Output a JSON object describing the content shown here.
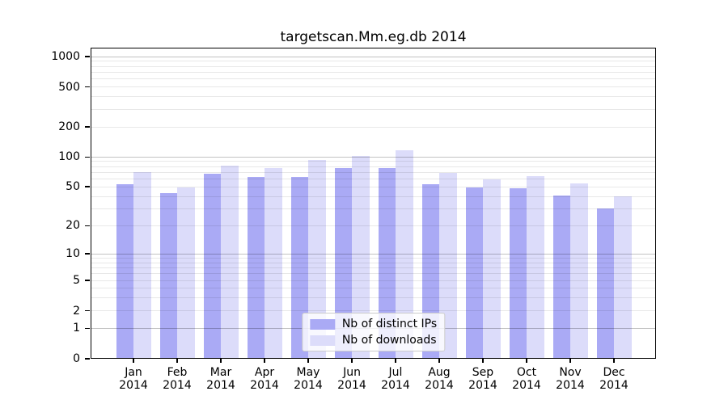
{
  "title": "targetscan.Mm.eg.db 2014",
  "chart_data": {
    "type": "bar",
    "title": "targetscan.Mm.eg.db 2014",
    "year": "2014",
    "months": [
      "Jan",
      "Feb",
      "Mar",
      "Apr",
      "May",
      "Jun",
      "Jul",
      "Aug",
      "Sep",
      "Oct",
      "Nov",
      "Dec"
    ],
    "series": [
      {
        "name": "Nb of distinct IPs",
        "color": "#aaaaf5",
        "values": [
          53,
          43,
          68,
          63,
          63,
          78,
          78,
          53,
          49,
          48,
          41,
          30
        ]
      },
      {
        "name": "Nb of downloads",
        "color": "#dcdcfa",
        "values": [
          70,
          49,
          82,
          77,
          94,
          102,
          117,
          69,
          60,
          64,
          54,
          40
        ]
      }
    ],
    "y_scale": "log10(value+1)",
    "y_ticks": [
      0,
      1,
      2,
      5,
      10,
      20,
      50,
      100,
      200,
      500,
      1000
    ],
    "ylim": [
      0,
      1229
    ],
    "grid": true,
    "legend_position": "lower center",
    "xlabel": "",
    "ylabel": ""
  },
  "colors": {
    "background": "#ffffff",
    "axis": "#000000",
    "grid_major": "rgba(0,0,0,0.24)",
    "grid_minor": "rgba(0,0,0,0.09)",
    "legend_border": "#cccccc",
    "legend_background": "rgba(255,255,255,0.8)",
    "text": "#000000"
  }
}
